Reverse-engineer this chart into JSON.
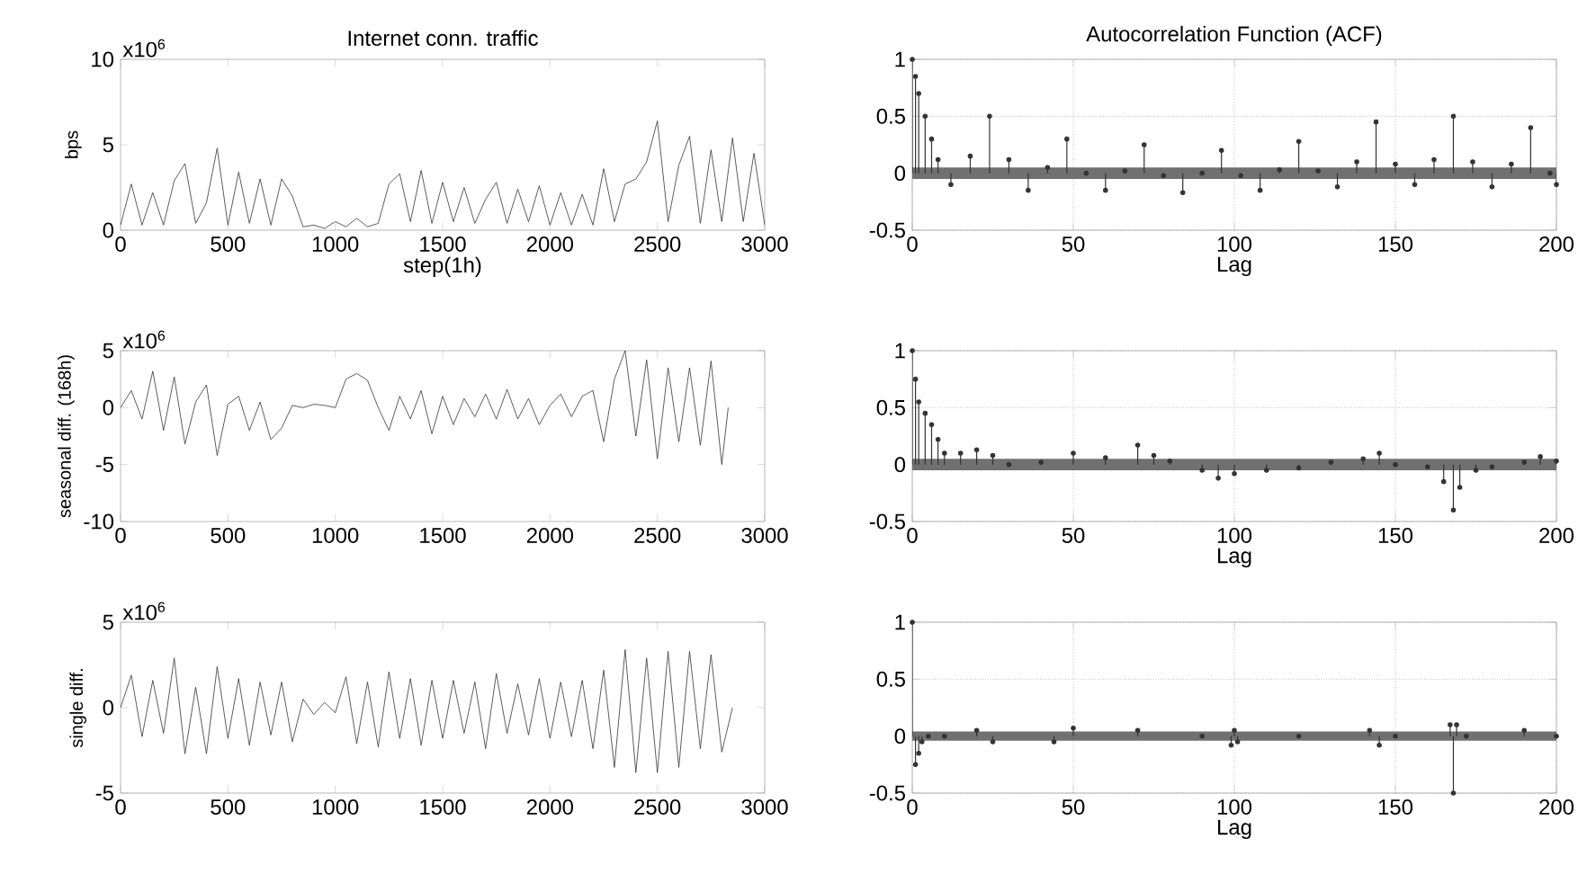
{
  "chart_data": [
    {
      "type": "line",
      "title": "Internet conn. traffic",
      "xlabel": "step(1h)",
      "ylabel": "bps",
      "annotations": [
        "x10$^{6}$"
      ],
      "xlim": [
        0,
        3000
      ],
      "xticks": [
        0,
        500,
        1000,
        1500,
        2000,
        2500,
        3000
      ],
      "ylim": [
        0,
        10
      ],
      "yticks": [
        0,
        5,
        10
      ],
      "series": [
        {
          "color": "#333333",
          "x": [
            0,
            50,
            100,
            150,
            200,
            250,
            300,
            350,
            400,
            450,
            500,
            550,
            600,
            650,
            700,
            750,
            800,
            850,
            900,
            950,
            1000,
            1050,
            1100,
            1150,
            1200,
            1250,
            1300,
            1350,
            1400,
            1450,
            1500,
            1550,
            1600,
            1650,
            1700,
            1750,
            1800,
            1850,
            1900,
            1950,
            2000,
            2050,
            2100,
            2150,
            2200,
            2250,
            2300,
            2350,
            2400,
            2450,
            2500,
            2550,
            2600,
            2650,
            2700,
            2750,
            2800,
            2850,
            2900,
            2950,
            3000
          ],
          "values": [
            0.3,
            2.7,
            0.3,
            2.2,
            0.3,
            2.9,
            3.9,
            0.4,
            1.6,
            4.8,
            0.3,
            3.4,
            0.4,
            3.0,
            0.3,
            3.0,
            2.0,
            0.2,
            0.3,
            0.1,
            0.5,
            0.2,
            0.7,
            0.2,
            0.4,
            2.7,
            3.3,
            0.5,
            3.5,
            0.4,
            2.8,
            0.5,
            2.5,
            0.4,
            1.8,
            2.8,
            0.4,
            2.4,
            0.5,
            2.6,
            0.3,
            2.2,
            0.3,
            2.1,
            0.3,
            3.6,
            0.5,
            2.7,
            3.0,
            4.0,
            6.4,
            0.5,
            3.8,
            5.5,
            0.4,
            4.7,
            0.5,
            5.4,
            0.5,
            4.5,
            0.3
          ]
        }
      ]
    },
    {
      "type": "lollipop",
      "title": "Autocorrelation Function (ACF)",
      "xlabel": "Lag",
      "xlim": [
        0,
        200
      ],
      "xticks": [
        0,
        50,
        100,
        150,
        200
      ],
      "ylim": [
        -0.5,
        1
      ],
      "yticks": [
        -0.5,
        0,
        0.5,
        1
      ],
      "grid": true,
      "marker": "circle",
      "bands": [
        {
          "axis": "y",
          "from": -0.05,
          "to": 0.05,
          "color": "#707070"
        }
      ],
      "series": [
        {
          "color": "#333333",
          "x": [
            0,
            1,
            2,
            4,
            6,
            8,
            12,
            18,
            24,
            30,
            36,
            42,
            48,
            54,
            60,
            66,
            72,
            78,
            84,
            90,
            96,
            102,
            108,
            114,
            120,
            126,
            132,
            138,
            144,
            150,
            156,
            162,
            168,
            174,
            180,
            186,
            192,
            198,
            200
          ],
          "values": [
            1,
            0.85,
            0.7,
            0.5,
            0.3,
            0.12,
            -0.1,
            0.15,
            0.5,
            0.12,
            -0.15,
            0.05,
            0.3,
            0.0,
            -0.15,
            0.02,
            0.25,
            -0.02,
            -0.17,
            0.0,
            0.2,
            -0.02,
            -0.15,
            0.03,
            0.28,
            0.02,
            -0.12,
            0.1,
            0.45,
            0.08,
            -0.1,
            0.12,
            0.5,
            0.1,
            -0.12,
            0.08,
            0.4,
            0.0,
            -0.1
          ]
        }
      ]
    },
    {
      "type": "line",
      "ylabel": "seasonal diff. (168h)",
      "annotations": [
        "x10$^{6}$"
      ],
      "xlim": [
        0,
        3000
      ],
      "xticks": [
        0,
        500,
        1000,
        1500,
        2000,
        2500,
        3000
      ],
      "ylim": [
        -10,
        5
      ],
      "yticks": [
        -10,
        -5,
        0,
        5
      ],
      "series": [
        {
          "color": "#333333",
          "x": [
            0,
            50,
            100,
            150,
            200,
            250,
            300,
            350,
            400,
            450,
            500,
            550,
            600,
            650,
            700,
            750,
            800,
            850,
            900,
            950,
            1000,
            1050,
            1100,
            1150,
            1200,
            1250,
            1300,
            1350,
            1400,
            1450,
            1500,
            1550,
            1600,
            1650,
            1700,
            1750,
            1800,
            1850,
            1900,
            1950,
            2000,
            2050,
            2100,
            2150,
            2200,
            2250,
            2300,
            2350,
            2400,
            2450,
            2500,
            2550,
            2600,
            2650,
            2700,
            2750,
            2800,
            2830
          ],
          "values": [
            0,
            1.5,
            -1.0,
            3.2,
            -2.0,
            2.7,
            -3.2,
            0.5,
            2.0,
            -4.2,
            0.3,
            1.0,
            -2.0,
            0.5,
            -2.8,
            -1.8,
            0.2,
            0,
            0.3,
            0.2,
            0,
            2.5,
            3.0,
            2.4,
            0,
            -2.0,
            1.0,
            -1.0,
            1.5,
            -2.3,
            1.0,
            -1.5,
            0.8,
            -0.8,
            1.2,
            -1.0,
            1.6,
            -1.0,
            0.8,
            -1.5,
            0.2,
            1.2,
            -0.8,
            1.0,
            1.5,
            -3.0,
            2.5,
            5.0,
            -2.5,
            4.2,
            -4.5,
            3.5,
            -3.0,
            3.5,
            -3.3,
            4.1,
            -5.0,
            0
          ]
        }
      ]
    },
    {
      "type": "lollipop",
      "xlabel": "Lag",
      "xlim": [
        0,
        200
      ],
      "xticks": [
        0,
        50,
        100,
        150,
        200
      ],
      "ylim": [
        -0.5,
        1
      ],
      "yticks": [
        -0.5,
        0,
        0.5,
        1
      ],
      "grid": true,
      "marker": "circle",
      "bands": [
        {
          "axis": "y",
          "from": -0.05,
          "to": 0.05,
          "color": "#707070"
        }
      ],
      "series": [
        {
          "color": "#333333",
          "x": [
            0,
            1,
            2,
            4,
            6,
            8,
            10,
            15,
            20,
            25,
            30,
            40,
            50,
            60,
            70,
            75,
            80,
            90,
            95,
            100,
            110,
            120,
            130,
            140,
            145,
            150,
            160,
            165,
            168,
            170,
            175,
            180,
            190,
            195,
            200
          ],
          "values": [
            1,
            0.75,
            0.55,
            0.45,
            0.35,
            0.22,
            0.1,
            0.1,
            0.13,
            0.08,
            0.0,
            0.02,
            0.1,
            0.06,
            0.17,
            0.08,
            0.03,
            -0.05,
            -0.12,
            -0.08,
            -0.05,
            -0.03,
            0.02,
            0.05,
            0.1,
            0.0,
            -0.02,
            -0.15,
            -0.4,
            -0.2,
            -0.05,
            -0.02,
            0.02,
            0.07,
            0.03
          ]
        }
      ]
    },
    {
      "type": "line",
      "ylabel": "single diff.",
      "annotations": [
        "x10$^{6}$"
      ],
      "xlim": [
        0,
        3000
      ],
      "xticks": [
        0,
        500,
        1000,
        1500,
        2000,
        2500,
        3000
      ],
      "ylim": [
        -5,
        5
      ],
      "yticks": [
        -5,
        0,
        5
      ],
      "series": [
        {
          "color": "#333333",
          "x": [
            0,
            50,
            100,
            150,
            200,
            250,
            300,
            350,
            400,
            450,
            500,
            550,
            600,
            650,
            700,
            750,
            800,
            850,
            900,
            950,
            1000,
            1050,
            1100,
            1150,
            1200,
            1250,
            1300,
            1350,
            1400,
            1450,
            1500,
            1550,
            1600,
            1650,
            1700,
            1750,
            1800,
            1850,
            1900,
            1950,
            2000,
            2050,
            2100,
            2150,
            2200,
            2250,
            2300,
            2350,
            2400,
            2450,
            2500,
            2550,
            2600,
            2650,
            2700,
            2750,
            2800,
            2850
          ],
          "values": [
            0,
            1.9,
            -1.7,
            1.6,
            -1.5,
            2.9,
            -2.7,
            1.2,
            -2.7,
            2.4,
            -1.8,
            1.7,
            -2.2,
            1.5,
            -1.6,
            1.5,
            -2.0,
            0.5,
            -0.4,
            0.3,
            -0.3,
            1.8,
            -2.1,
            1.5,
            -2.3,
            2.1,
            -1.8,
            1.7,
            -2.2,
            1.6,
            -1.8,
            1.6,
            -1.5,
            1.5,
            -2.4,
            2.0,
            -1.5,
            1.4,
            -1.6,
            1.7,
            -1.8,
            1.5,
            -1.7,
            1.6,
            -2.4,
            2.2,
            -3.5,
            3.4,
            -3.8,
            2.9,
            -3.8,
            3.3,
            -3.5,
            3.3,
            -2.4,
            3.1,
            -2.6,
            0
          ]
        }
      ]
    },
    {
      "type": "lollipop",
      "xlabel": "Lag",
      "xlim": [
        0,
        200
      ],
      "xticks": [
        0,
        50,
        100,
        150,
        200
      ],
      "ylim": [
        -0.5,
        1
      ],
      "yticks": [
        -0.5,
        0,
        0.5,
        1
      ],
      "grid": true,
      "marker": "circle",
      "bands": [
        {
          "axis": "y",
          "from": -0.04,
          "to": 0.04,
          "color": "#707070"
        }
      ],
      "series": [
        {
          "color": "#333333",
          "x": [
            0,
            1,
            2,
            3,
            5,
            10,
            20,
            25,
            44,
            50,
            70,
            90,
            99,
            100,
            101,
            120,
            142,
            145,
            150,
            167,
            168,
            169,
            172,
            190,
            200
          ],
          "values": [
            1,
            -0.25,
            -0.15,
            -0.05,
            0,
            0,
            0.05,
            -0.05,
            -0.05,
            0.07,
            0.05,
            0,
            -0.08,
            0.05,
            -0.05,
            0,
            0.05,
            -0.08,
            0,
            0.1,
            -0.5,
            0.1,
            0.0,
            0.05,
            0
          ]
        }
      ]
    }
  ]
}
